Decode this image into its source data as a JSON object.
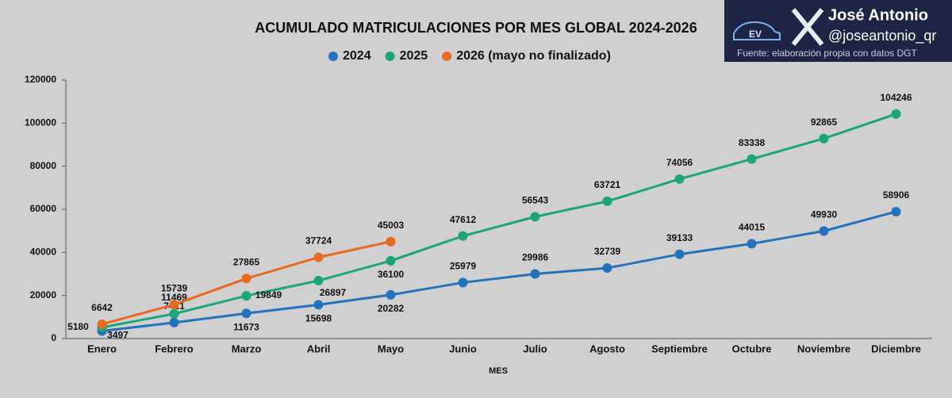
{
  "chart_data": {
    "type": "line",
    "title": "ACUMULADO MATRICULACIONES POR MES GLOBAL 2024-2026",
    "x_label": "MES",
    "categories": [
      "Enero",
      "Febrero",
      "Marzo",
      "Abril",
      "Mayo",
      "Junio",
      "Julio",
      "Agosto",
      "Septiembre",
      "Octubre",
      "Noviembre",
      "Diciembre"
    ],
    "series": [
      {
        "name": "2024",
        "color": "#2472bb",
        "values": [
          3497,
          7421,
          11673,
          15698,
          20282,
          25979,
          29986,
          32739,
          39133,
          44015,
          49930,
          58906
        ]
      },
      {
        "name": "2025",
        "color": "#1ca47a",
        "values": [
          5180,
          11469,
          19849,
          26897,
          36100,
          47612,
          56543,
          63721,
          74056,
          83338,
          92865,
          104246
        ]
      },
      {
        "name": "2026 (mayo no finalizado)",
        "color": "#e8691f",
        "values": [
          6642,
          15739,
          27865,
          37724,
          45003,
          null,
          null,
          null,
          null,
          null,
          null,
          null
        ]
      }
    ],
    "ylim": [
      0,
      120000
    ],
    "yticks": [
      0,
      20000,
      40000,
      60000,
      80000,
      100000,
      120000
    ],
    "grid": false,
    "legend": "top"
  },
  "watermark": {
    "name": "José Antonio",
    "handle": "@joseantonio_qr",
    "source": "Fuente: elaboración propia con datos DGT",
    "logo_text": "EV"
  }
}
